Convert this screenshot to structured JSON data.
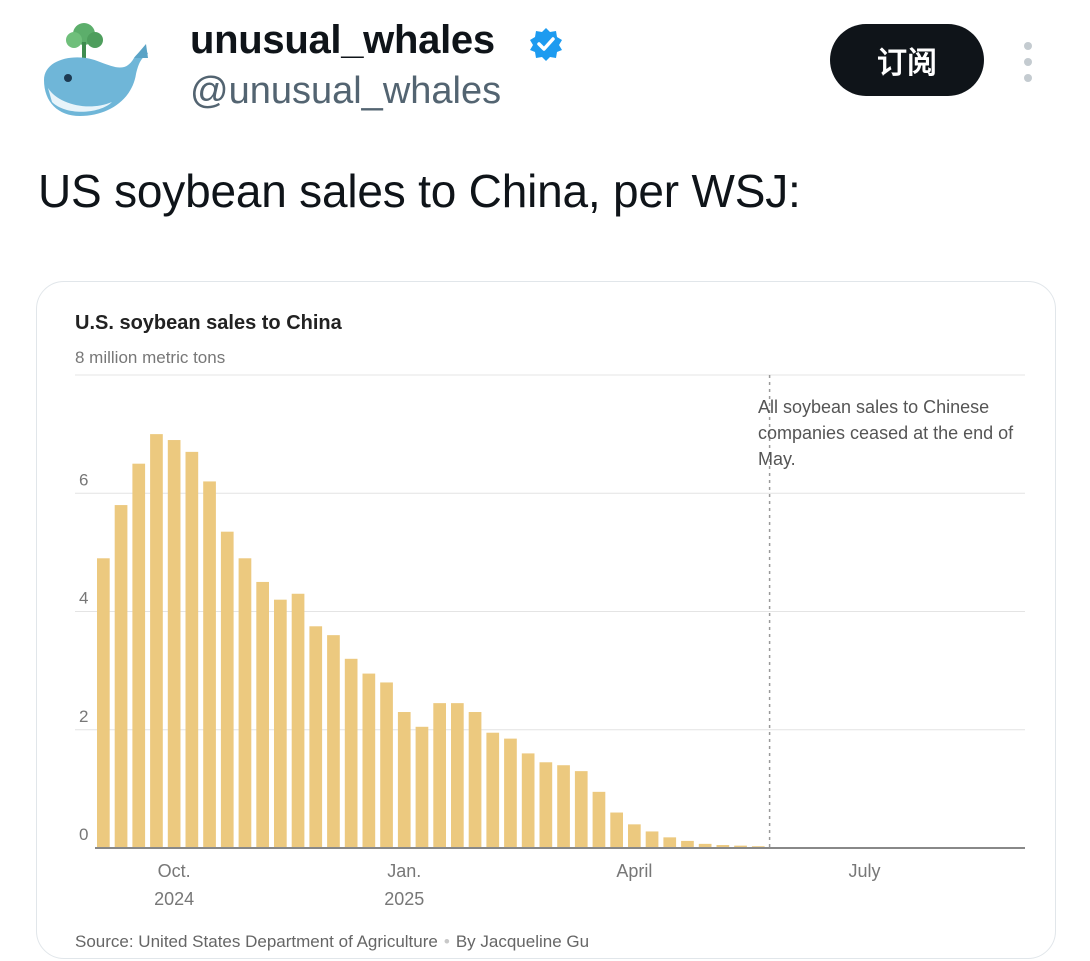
{
  "post": {
    "display_name": "unusual_whales",
    "handle": "@unusual_whales",
    "subscribe_label": "订阅",
    "text": "US soybean sales to China, per WSJ:"
  },
  "colors": {
    "bar": "#ecc97f",
    "grid": "#e4e4e4",
    "axis": "#888888",
    "verified": "#1d9bf0",
    "button_bg": "#0f1419"
  },
  "icons": {
    "avatar": "whale-avatar-icon",
    "verified": "verified-badge-icon",
    "more": "more-vertical-icon"
  },
  "chart_data": {
    "type": "bar",
    "title": "U.S. soybean sales to China",
    "subtitle": "8 million metric tons",
    "ylim": [
      0,
      8
    ],
    "yticks": [
      0,
      2,
      4,
      6
    ],
    "grid": true,
    "xtick_labels": [
      {
        "line1": "Oct.",
        "line2": "2024",
        "index": 4
      },
      {
        "line1": "Jan.",
        "line2": "2025",
        "index": 17
      },
      {
        "line1": "April",
        "line2": "",
        "index": 30
      },
      {
        "line1": "July",
        "line2": "",
        "index": 43
      }
    ],
    "values": [
      4.9,
      5.8,
      6.5,
      7.0,
      6.9,
      6.7,
      6.2,
      5.35,
      4.9,
      4.5,
      4.2,
      4.3,
      3.75,
      3.6,
      3.2,
      2.95,
      2.8,
      2.3,
      2.05,
      2.45,
      2.45,
      2.3,
      1.95,
      1.85,
      1.6,
      1.45,
      1.4,
      1.3,
      0.95,
      0.6,
      0.4,
      0.28,
      0.18,
      0.12,
      0.07,
      0.05,
      0.04,
      0.03
    ],
    "total_periods": 56,
    "marker_index": 38,
    "annotation": "All soybean sales to Chinese companies ceased at the end of May.",
    "source": "Source: United States Department of Agriculture",
    "byline": "By Jacqueline Gu"
  }
}
